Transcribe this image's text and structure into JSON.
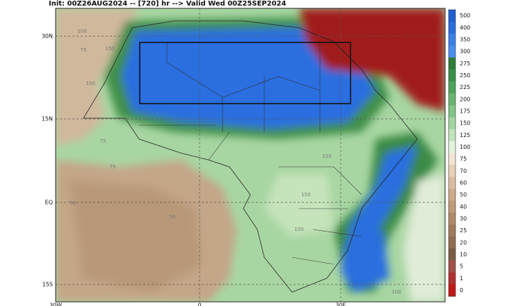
{
  "title": "Init: 00Z26AUG2024 -- [720] hr --> Valid Wed 00Z25SEP2024",
  "latitude_labels": [
    "30N",
    "15N",
    "EQ",
    "15S"
  ],
  "longitude_labels": [
    "30W",
    "0",
    "30E"
  ],
  "contour_labels": [
    "100",
    "75",
    "150",
    "100",
    "75",
    "75",
    "150",
    "150",
    "50",
    "50",
    "150",
    "100"
  ],
  "colorbar": [
    {
      "label": "500",
      "color": "#1f5fd0"
    },
    {
      "label": "400",
      "color": "#2a6ee0"
    },
    {
      "label": "350",
      "color": "#3a7fe8"
    },
    {
      "label": "300",
      "color": "#4a8fef"
    },
    {
      "label": "275",
      "color": "#2e7d3a"
    },
    {
      "label": "250",
      "color": "#3a9048"
    },
    {
      "label": "225",
      "color": "#4ea35a"
    },
    {
      "label": "200",
      "color": "#66b46e"
    },
    {
      "label": "175",
      "color": "#82c486"
    },
    {
      "label": "150",
      "color": "#a2d4a0"
    },
    {
      "label": "125",
      "color": "#c2e4bc"
    },
    {
      "label": "100",
      "color": "#e2f2dc"
    },
    {
      "label": "75",
      "color": "#f2e4d2"
    },
    {
      "label": "70",
      "color": "#e6d0b8"
    },
    {
      "label": "60",
      "color": "#dabda0"
    },
    {
      "label": "50",
      "color": "#ccaa8a"
    },
    {
      "label": "40",
      "color": "#bf9a78"
    },
    {
      "label": "30",
      "color": "#b08a68"
    },
    {
      "label": "25",
      "color": "#a07a5a"
    },
    {
      "label": "20",
      "color": "#8f6c50"
    },
    {
      "label": "10",
      "color": "#7a5c44"
    },
    {
      "label": "5",
      "color": "#a05048"
    },
    {
      "label": "1",
      "color": "#b03030"
    },
    {
      "label": "0",
      "color": "#c01818"
    }
  ]
}
